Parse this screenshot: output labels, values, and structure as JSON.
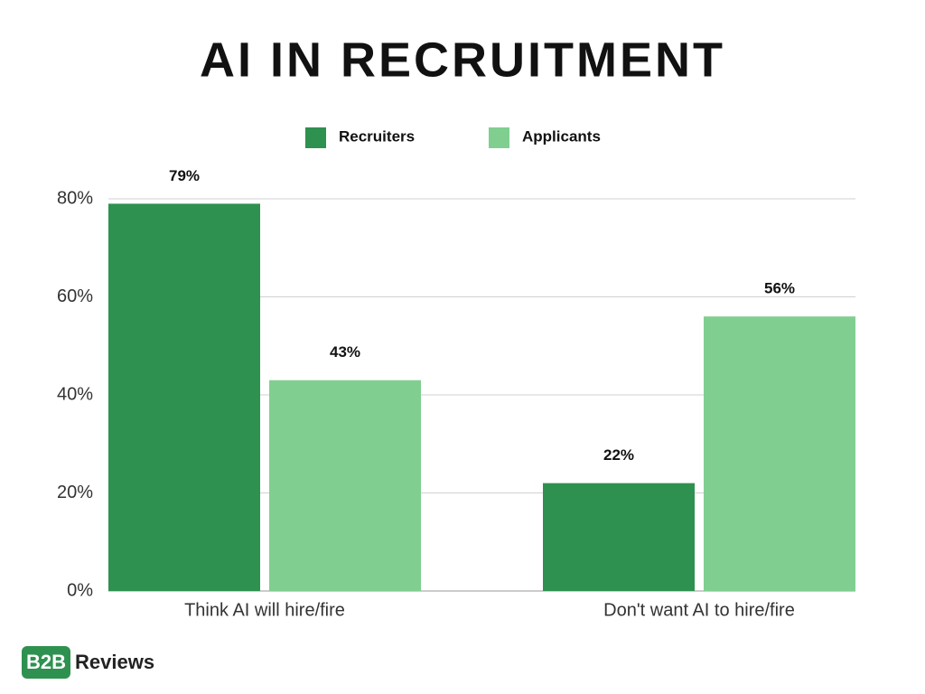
{
  "chart_data": {
    "type": "bar",
    "title": "AI IN RECRUITMENT",
    "categories": [
      "Think AI will hire/fire",
      "Don't want AI to hire/fire"
    ],
    "series": [
      {
        "name": "Recruiters",
        "color": "#2e9150",
        "values": [
          79,
          22
        ],
        "value_labels": [
          "79%",
          "22%"
        ]
      },
      {
        "name": "Applicants",
        "color": "#80cf90",
        "values": [
          43,
          56
        ],
        "value_labels": [
          "43%",
          "56%"
        ]
      }
    ],
    "ylim": [
      0,
      80
    ],
    "yticks": [
      {
        "value": 0,
        "label": "0%"
      },
      {
        "value": 20,
        "label": "20%"
      },
      {
        "value": 40,
        "label": "40%"
      },
      {
        "value": 60,
        "label": "60%"
      },
      {
        "value": 80,
        "label": "80%"
      }
    ],
    "grid": true,
    "legend": "top"
  },
  "logo": {
    "badge": "B2B",
    "text": "Reviews"
  }
}
